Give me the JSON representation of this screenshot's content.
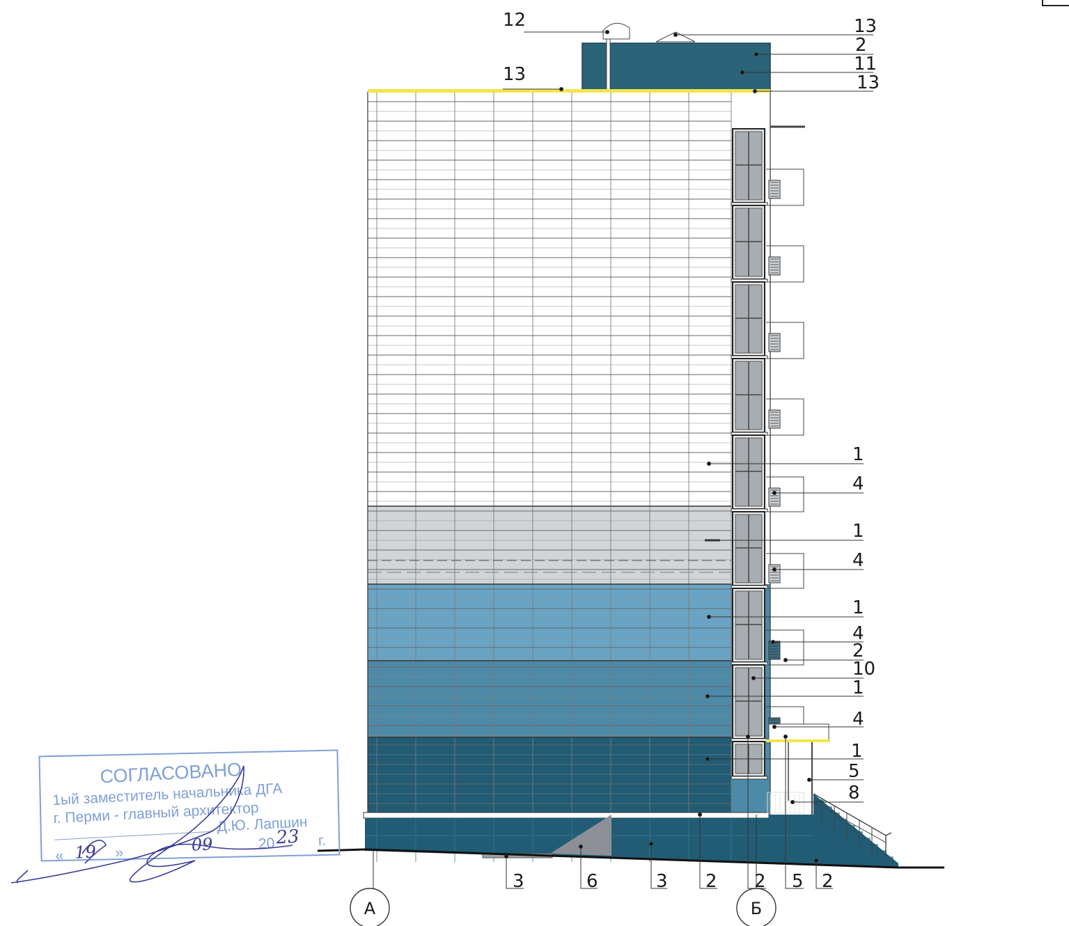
{
  "colors": {
    "facade_white": "#ffffff",
    "facade_light_grey": "#d2d5d8",
    "facade_light_blue": "#6aa4c4",
    "facade_mid_blue": "#4d8aa8",
    "facade_dark_teal": "#215c74",
    "plinth_teal": "#215c74",
    "roof_box_teal": "#2b6378",
    "parapet_yellow": "#f0e64c",
    "ramp_grey": "#8c9096",
    "stamp_blue": "#7f9fd8",
    "signature_ink": "#3b3b9a"
  },
  "callouts_top": {
    "n12": "12",
    "n13_roof": "13"
  },
  "callouts_right": [
    "13",
    "2",
    "11",
    "13",
    "1",
    "4",
    "1",
    "4",
    "1",
    "4",
    "2",
    "10",
    "1",
    "4",
    "1",
    "5",
    "8"
  ],
  "callouts_bottom": [
    "3",
    "6",
    "3",
    "2",
    "2",
    "5",
    "2"
  ],
  "axes": {
    "left": "А",
    "right": "Б"
  },
  "stamp": {
    "title": "СОГЛАСОВАНО",
    "line1": "1ый заместитель начальника ДГА",
    "line2": "г. Перми - главный архитектор",
    "name": "Д.Ю. Лапшин",
    "date_day": "19",
    "date_month": "09",
    "year_prefix": "20",
    "year_suffix": "23",
    "year_g": "г."
  }
}
